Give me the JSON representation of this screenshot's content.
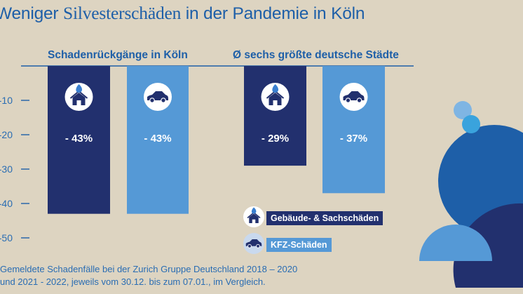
{
  "title": {
    "pre": "Weniger ",
    "accent": "Silvesterschäden",
    "post": " in der Pandemie in Köln"
  },
  "colors": {
    "background": "#ddd4c1",
    "dark_blue": "#22306e",
    "light_blue": "#5599d6",
    "text_blue": "#1e5fa8"
  },
  "legend": [
    {
      "label": "Gebäude- & Sachschäden",
      "color": "#22306e",
      "icon": "house-fire-icon"
    },
    {
      "label": "KFZ-Schäden",
      "color": "#5599d6",
      "icon": "car-icon"
    }
  ],
  "footnote": {
    "line1": "Gemeldete Schadenfälle bei der Zurich Gruppe Deutschland 2018 – 2020",
    "line2": "und 2021 - 2022, jeweils vom 30.12. bis zum 07.01., im Vergleich."
  },
  "chart_data": {
    "type": "bar",
    "title": "Weniger Silvesterschäden in der Pandemie in Köln",
    "ylabel": "",
    "ylim": [
      -50,
      0
    ],
    "yticks": [
      -10,
      -20,
      -30,
      -40,
      -50
    ],
    "ytick_labels": [
      "-10",
      "-20",
      "-30",
      "-40",
      "-50"
    ],
    "groups": [
      "Schadenrückgänge in Köln",
      "Ø sechs größte deutsche Städte"
    ],
    "series": [
      {
        "name": "Gebäude- & Sachschäden",
        "values": [
          -43,
          -29
        ],
        "labels": [
          "- 43%",
          "- 29%"
        ]
      },
      {
        "name": "KFZ-Schäden",
        "values": [
          -43,
          -37
        ],
        "labels": [
          "- 43%",
          "- 37%"
        ]
      }
    ]
  }
}
